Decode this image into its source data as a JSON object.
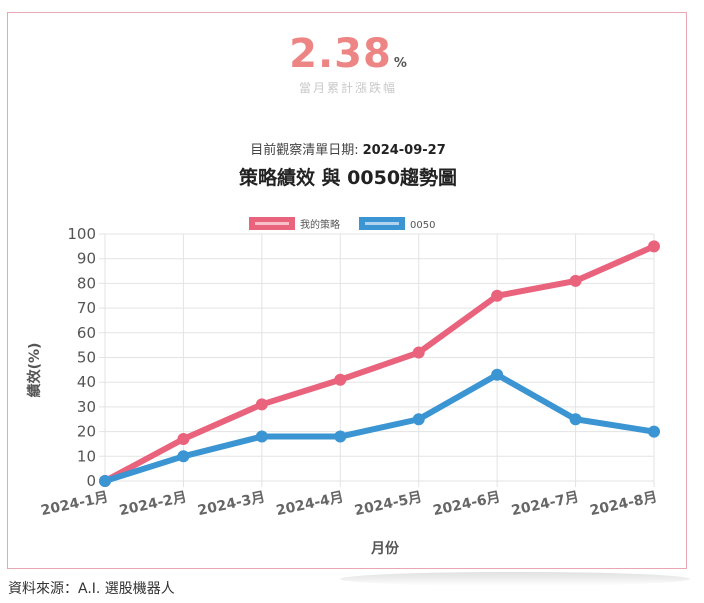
{
  "header": {
    "monthly_change_value": "2.38",
    "monthly_change_unit": "%",
    "monthly_change_caption": "當月累計漲跌幅",
    "observation_label": "目前觀察清單日期:",
    "observation_date": "2024-09-27"
  },
  "footer": {
    "source": "資料來源：A.I. 選股機器人"
  },
  "colors": {
    "strategy": "#e9637d",
    "etf": "#3a95d2",
    "frame_border": "#e8a7b3",
    "grid": "#e3e3e3"
  },
  "chart_data": {
    "type": "line",
    "title": "策略績效 與 0050趨勢圖",
    "xlabel": "月份",
    "ylabel": "績效(%)",
    "categories": [
      "2024-1月",
      "2024-2月",
      "2024-3月",
      "2024-4月",
      "2024-5月",
      "2024-6月",
      "2024-7月",
      "2024-8月"
    ],
    "ylim": [
      0,
      100
    ],
    "yticks": [
      "0",
      "10",
      "20",
      "30",
      "40",
      "50",
      "60",
      "70",
      "80",
      "90",
      "100"
    ],
    "grid": true,
    "legend_position": "top-center",
    "series": [
      {
        "name": "我的策略",
        "values": [
          0,
          17,
          31,
          41,
          52,
          75,
          81,
          95
        ]
      },
      {
        "name": "0050",
        "values": [
          0,
          10,
          18,
          18,
          25,
          43,
          25,
          20
        ]
      }
    ]
  }
}
